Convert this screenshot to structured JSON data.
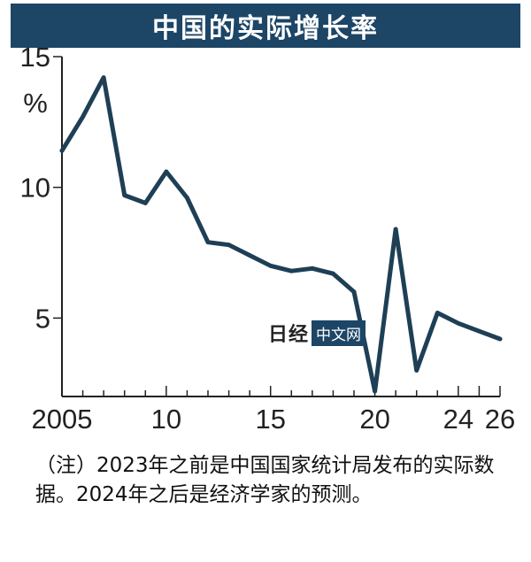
{
  "title": "中国的实际增长率",
  "footnote": "（注）2023年之前是中国国家统计局发布的实际数据。2024年之后是经济学家的预测。",
  "watermark": {
    "logo": "日经",
    "badge": "中文网"
  },
  "colors": {
    "title_bg": "#1c4566",
    "line": "#1e3f55",
    "axis": "#222222"
  },
  "chart_data": {
    "type": "line",
    "title": "中国的实际增长率",
    "ylabel": "%",
    "xlabel": "",
    "xlim": [
      2005,
      2026
    ],
    "ylim": [
      2.0,
      15.0
    ],
    "x_tick_labels": [
      "2005",
      "10",
      "15",
      "20",
      "24",
      "26"
    ],
    "y_tick_labels": [
      "15",
      "10",
      "5"
    ],
    "grid": false,
    "series": [
      {
        "name": "",
        "x": [
          2005,
          2006,
          2007,
          2008,
          2009,
          2010,
          2011,
          2012,
          2013,
          2014,
          2015,
          2016,
          2017,
          2018,
          2019,
          2020,
          2021,
          2022,
          2023,
          2024,
          2025,
          2026
        ],
        "y": [
          11.4,
          12.7,
          14.2,
          9.7,
          9.4,
          10.6,
          9.6,
          7.9,
          7.8,
          7.4,
          7.0,
          6.8,
          6.9,
          6.7,
          6.0,
          2.2,
          8.4,
          3.0,
          5.2,
          4.8,
          4.5,
          4.2
        ]
      }
    ]
  }
}
